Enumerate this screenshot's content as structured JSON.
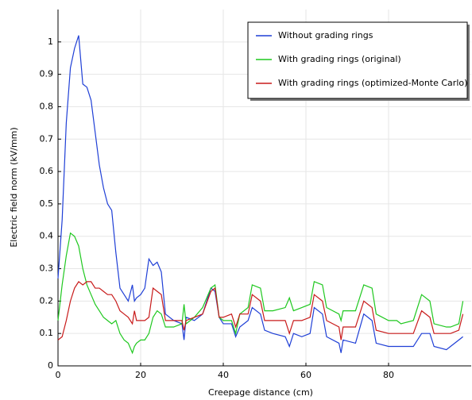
{
  "chart_data": {
    "type": "line",
    "xlabel": "Creepage distance (cm)",
    "ylabel": "Electric field norm (kV/mm)",
    "x": [
      0,
      1,
      2,
      3,
      4,
      5,
      6,
      7,
      8,
      9,
      10,
      11,
      12,
      13,
      14,
      15,
      16,
      17,
      18,
      18.5,
      19,
      20,
      21,
      22,
      23,
      24,
      25,
      26,
      28,
      30,
      30.5,
      31,
      33,
      35,
      37,
      38,
      39,
      40,
      42,
      43,
      44,
      46,
      47,
      49,
      50,
      52,
      55,
      56,
      57,
      59,
      61,
      62,
      64,
      65,
      68,
      68.5,
      69,
      72,
      74,
      76,
      77,
      80,
      82,
      83,
      86,
      88,
      90,
      91,
      94,
      95,
      97,
      98
    ],
    "series": [
      {
        "name": "Without grading rings",
        "color": "#1f3fd6",
        "values": [
          0.27,
          0.45,
          0.75,
          0.92,
          0.98,
          1.02,
          0.87,
          0.86,
          0.82,
          0.72,
          0.62,
          0.55,
          0.5,
          0.48,
          0.35,
          0.24,
          0.22,
          0.2,
          0.25,
          0.2,
          0.21,
          0.22,
          0.24,
          0.33,
          0.31,
          0.32,
          0.29,
          0.16,
          0.14,
          0.13,
          0.08,
          0.15,
          0.14,
          0.16,
          0.24,
          0.23,
          0.15,
          0.13,
          0.13,
          0.09,
          0.12,
          0.14,
          0.18,
          0.16,
          0.11,
          0.1,
          0.09,
          0.06,
          0.1,
          0.09,
          0.1,
          0.18,
          0.16,
          0.09,
          0.07,
          0.04,
          0.08,
          0.07,
          0.16,
          0.14,
          0.07,
          0.06,
          0.06,
          0.06,
          0.06,
          0.1,
          0.1,
          0.06,
          0.05,
          0.06,
          0.08,
          0.09
        ]
      },
      {
        "name": "With grading rings (original)",
        "color": "#1fc81f",
        "values": [
          0.14,
          0.25,
          0.34,
          0.41,
          0.4,
          0.37,
          0.3,
          0.25,
          0.22,
          0.19,
          0.17,
          0.15,
          0.14,
          0.13,
          0.14,
          0.1,
          0.08,
          0.07,
          0.04,
          0.06,
          0.07,
          0.08,
          0.08,
          0.1,
          0.15,
          0.17,
          0.16,
          0.12,
          0.12,
          0.13,
          0.19,
          0.13,
          0.15,
          0.18,
          0.24,
          0.25,
          0.15,
          0.14,
          0.14,
          0.1,
          0.16,
          0.18,
          0.25,
          0.24,
          0.17,
          0.17,
          0.18,
          0.21,
          0.17,
          0.18,
          0.19,
          0.26,
          0.25,
          0.18,
          0.16,
          0.14,
          0.17,
          0.17,
          0.25,
          0.24,
          0.16,
          0.14,
          0.14,
          0.13,
          0.14,
          0.22,
          0.2,
          0.13,
          0.12,
          0.12,
          0.13,
          0.2
        ]
      },
      {
        "name": "With grading rings (optimized-Monte Carlo)",
        "color": "#c81a1a",
        "values": [
          0.08,
          0.09,
          0.14,
          0.2,
          0.24,
          0.26,
          0.25,
          0.26,
          0.26,
          0.24,
          0.24,
          0.23,
          0.22,
          0.22,
          0.2,
          0.17,
          0.16,
          0.15,
          0.13,
          0.17,
          0.14,
          0.14,
          0.14,
          0.15,
          0.24,
          0.23,
          0.22,
          0.14,
          0.14,
          0.14,
          0.11,
          0.14,
          0.15,
          0.16,
          0.23,
          0.24,
          0.15,
          0.15,
          0.16,
          0.12,
          0.16,
          0.16,
          0.22,
          0.2,
          0.14,
          0.14,
          0.14,
          0.1,
          0.14,
          0.14,
          0.15,
          0.22,
          0.2,
          0.14,
          0.12,
          0.08,
          0.12,
          0.12,
          0.2,
          0.18,
          0.11,
          0.1,
          0.1,
          0.1,
          0.1,
          0.17,
          0.15,
          0.1,
          0.1,
          0.1,
          0.11,
          0.16
        ]
      }
    ],
    "xlim": [
      0,
      100
    ],
    "ylim": [
      0,
      1.1
    ],
    "xticks": [
      0,
      20,
      40,
      60,
      80
    ],
    "yticks": [
      0,
      0.1,
      0.2,
      0.3,
      0.4,
      0.5,
      0.6,
      0.7,
      0.8,
      0.9,
      1
    ],
    "grid": true,
    "legend": "upper-right"
  }
}
